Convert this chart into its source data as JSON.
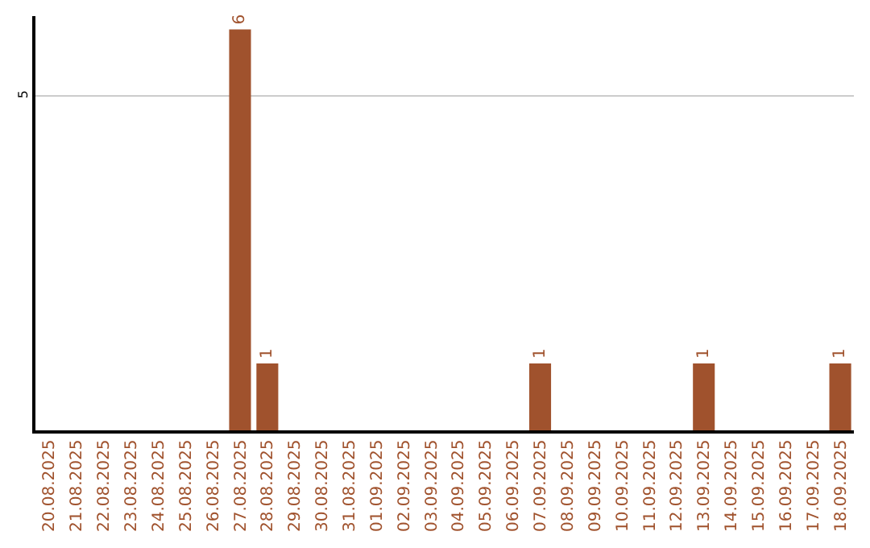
{
  "chart_data": {
    "type": "bar",
    "categories": [
      "20.08.2025",
      "21.08.2025",
      "22.08.2025",
      "23.08.2025",
      "24.08.2025",
      "25.08.2025",
      "26.08.2025",
      "27.08.2025",
      "28.08.2025",
      "29.08.2025",
      "30.08.2025",
      "31.08.2025",
      "01.09.2025",
      "02.09.2025",
      "03.09.2025",
      "04.09.2025",
      "05.09.2025",
      "06.09.2025",
      "07.09.2025",
      "08.09.2025",
      "09.09.2025",
      "10.09.2025",
      "11.09.2025",
      "12.09.2025",
      "13.09.2025",
      "14.09.2025",
      "15.09.2025",
      "16.09.2025",
      "17.09.2025",
      "18.09.2025"
    ],
    "values": [
      0,
      0,
      0,
      0,
      0,
      0,
      0,
      6,
      1,
      0,
      0,
      0,
      0,
      0,
      0,
      0,
      0,
      0,
      1,
      0,
      0,
      0,
      0,
      0,
      1,
      0,
      0,
      0,
      0,
      1
    ],
    "value_labels": [
      null,
      null,
      null,
      null,
      null,
      null,
      null,
      "6",
      "1",
      null,
      null,
      null,
      null,
      null,
      null,
      null,
      null,
      null,
      "1",
      null,
      null,
      null,
      null,
      null,
      "1",
      null,
      null,
      null,
      null,
      "1"
    ],
    "color": "#a0522d",
    "ylim": [
      0,
      6.2
    ],
    "yticks": [
      5
    ],
    "grid": "y",
    "legend": false
  }
}
